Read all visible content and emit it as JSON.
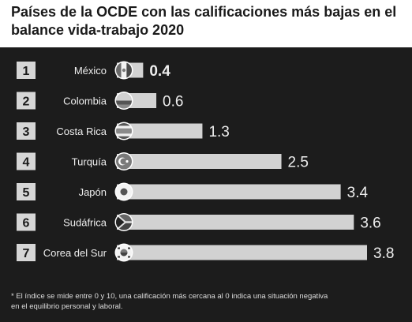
{
  "title": {
    "line1": "Países de la OCDE con las calificaciones más bajas en el",
    "line2": "balance vida-trabajo 2020"
  },
  "chart_data": {
    "type": "bar",
    "orientation": "horizontal",
    "title": "Países de la OCDE con las calificaciones más bajas en el balance vida-trabajo 2020",
    "ranks": [
      "1",
      "2",
      "3",
      "4",
      "5",
      "6",
      "7"
    ],
    "categories": [
      "México",
      "Colombia",
      "Costa Rica",
      "Turquía",
      "Japón",
      "Sudáfrica",
      "Corea del Sur"
    ],
    "values": [
      0.4,
      0.6,
      1.3,
      2.5,
      3.4,
      3.6,
      3.8
    ],
    "value_labels": [
      "0.4",
      "0.6",
      "1.3",
      "2.5",
      "3.4",
      "3.6",
      "3.8"
    ],
    "xlim": [
      0,
      3.8
    ],
    "grid": false,
    "legend": "none"
  },
  "flags": [
    "mexico-flag-icon",
    "colombia-flag-icon",
    "costa-rica-flag-icon",
    "turkey-flag-icon",
    "japan-flag-icon",
    "south-africa-flag-icon",
    "south-korea-flag-icon"
  ],
  "footnote": {
    "line1": "* El índice se mide entre 0 y 10, una calificación más cercana al 0 indica una situación negativa",
    "line2": "en el equilibrio personal y laboral."
  },
  "colors": {
    "background": "#1c1c1c",
    "bar": "#d2d2d2",
    "rank_box": "#d6d6d6",
    "text": "#eeeeee"
  }
}
